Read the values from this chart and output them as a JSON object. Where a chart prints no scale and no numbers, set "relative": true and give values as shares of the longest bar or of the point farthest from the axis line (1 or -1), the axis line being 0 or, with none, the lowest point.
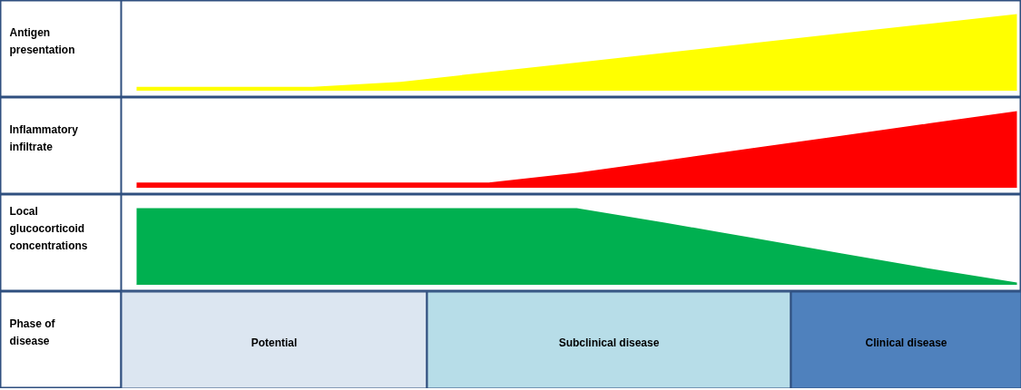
{
  "chart_data": [
    {
      "type": "area",
      "ylabel": "Antigen\npresentation",
      "relative": true,
      "categories": [
        null,
        null,
        null,
        null,
        null,
        null,
        null,
        null,
        null,
        null,
        null
      ],
      "series": [
        {
          "color": "#ffff00",
          "values": [
            0.04,
            0.04,
            0.04,
            0.107,
            0.235,
            0.362,
            0.49,
            0.617,
            0.745,
            0.872,
            1
          ]
        }
      ]
    },
    {
      "type": "area",
      "ylabel": "Inflammatory\ninfiltrate",
      "relative": true,
      "categories": [
        null,
        null,
        null,
        null,
        null,
        null,
        null,
        null,
        null,
        null,
        null
      ],
      "series": [
        {
          "color": "#ff0000",
          "values": [
            0.06,
            0.06,
            0.06,
            0.06,
            0.06,
            0.186,
            0.349,
            0.512,
            0.675,
            0.838,
            1
          ]
        }
      ]
    },
    {
      "type": "area",
      "ylabel": "Local\nglucocorticoid\nconcentrations",
      "relative": true,
      "categories": [
        null,
        null,
        null,
        null,
        null,
        null,
        null,
        null,
        null,
        null,
        null
      ],
      "series": [
        {
          "color": "#00b050",
          "values": [
            1,
            1,
            1,
            1,
            1,
            1,
            0.809,
            0.608,
            0.406,
            0.205,
            0.02
          ]
        }
      ]
    },
    {
      "type": "other",
      "ylabel": "Phase of\ndisease",
      "categories": [
        "Potential",
        "Subclinical disease",
        "Clinical disease"
      ],
      "colors": [
        "#dce6f1",
        "#b7dde8",
        "#4f81bd"
      ]
    }
  ]
}
